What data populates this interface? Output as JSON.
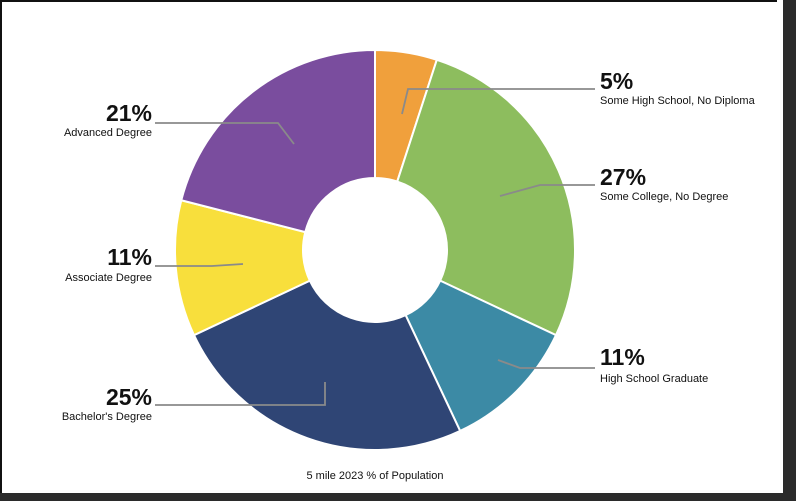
{
  "chart_data": {
    "type": "pie",
    "variant": "donut",
    "title": "5 mile 2023 % of Population",
    "slices": [
      {
        "label": "Some High School, No Diploma",
        "value": 5,
        "display": "5%",
        "color": "#f0a03c",
        "label_side": "right"
      },
      {
        "label": "Some College, No Degree",
        "value": 27,
        "display": "27%",
        "color": "#8dbd5e",
        "label_side": "right"
      },
      {
        "label": "High School Graduate",
        "value": 11,
        "display": "11%",
        "color": "#3c8aa5",
        "label_side": "right"
      },
      {
        "label": "Bachelor's Degree",
        "value": 25,
        "display": "25%",
        "color": "#2f4575",
        "label_side": "left"
      },
      {
        "label": "Associate Degree",
        "value": 11,
        "display": "11%",
        "color": "#f8df3c",
        "label_side": "left"
      },
      {
        "label": "Advanced Degree",
        "value": 21,
        "display": "21%",
        "color": "#7a4d9e",
        "label_side": "left"
      }
    ],
    "start_angle_deg": 0,
    "direction": "clockwise",
    "legend": "none"
  }
}
